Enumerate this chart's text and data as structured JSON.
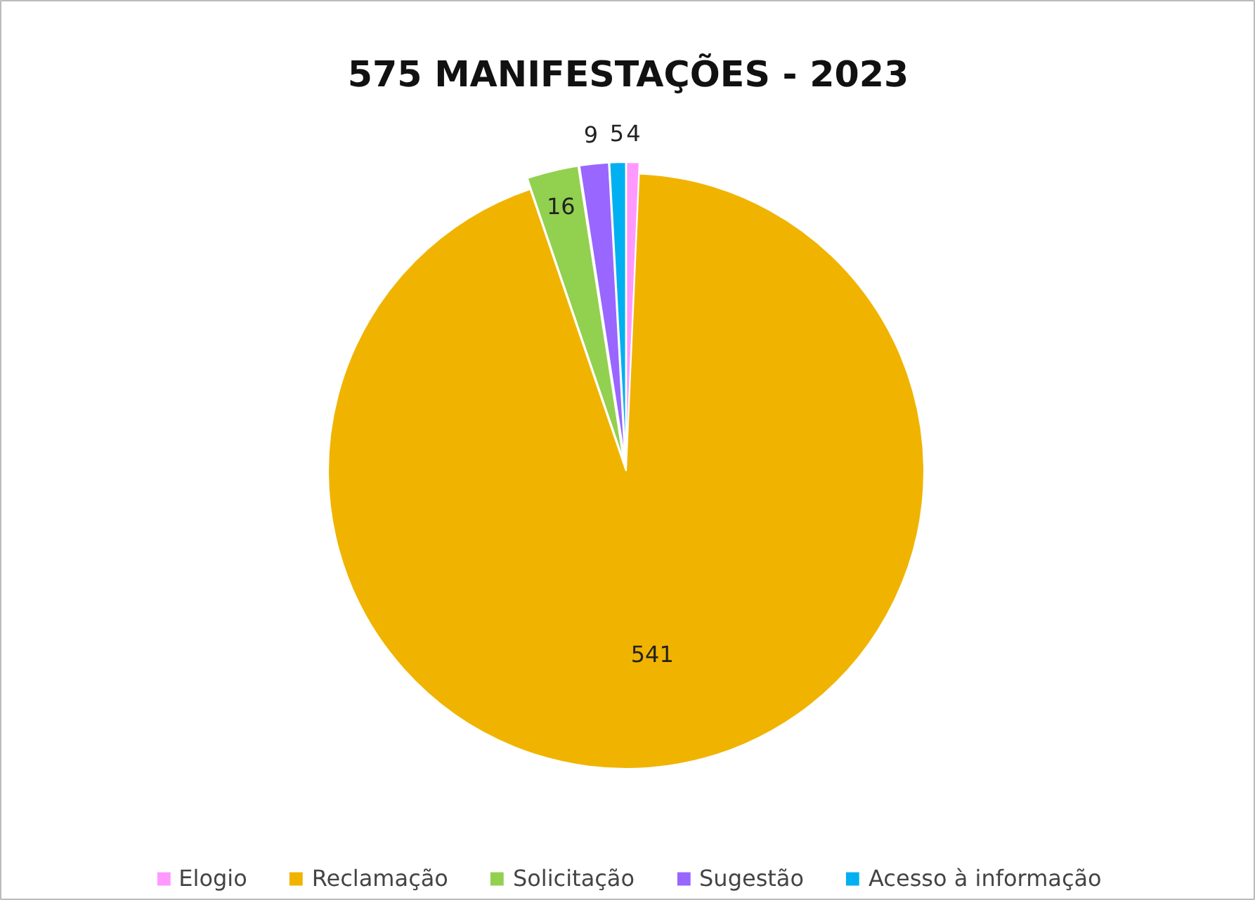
{
  "chart_data": {
    "type": "pie",
    "title": "575 MANIFESTAÇÕES - 2023",
    "categories": [
      "Elogio",
      "Reclamação",
      "Solicitação",
      "Sugestão",
      "Acesso à informação"
    ],
    "values": [
      4,
      541,
      16,
      9,
      5
    ],
    "colors": [
      "#ff99ff",
      "#f0b400",
      "#92d050",
      "#9966ff",
      "#00b0f0"
    ],
    "data_labels": true,
    "legend": "bottom"
  }
}
